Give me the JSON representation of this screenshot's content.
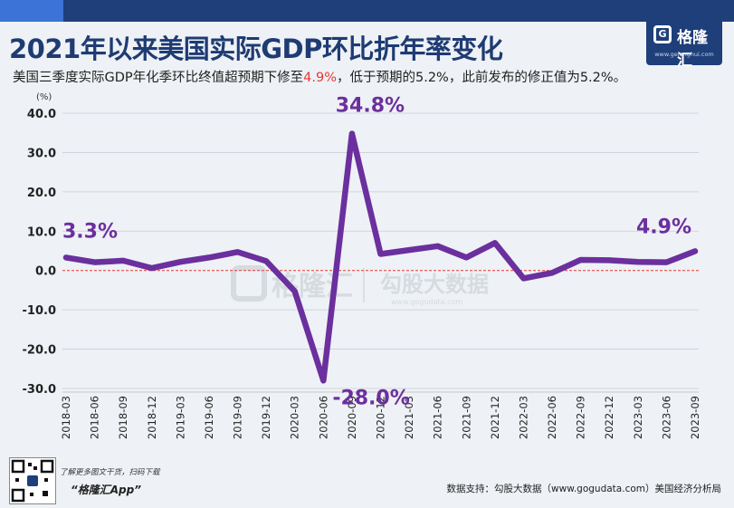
{
  "header": {
    "title": "2021年以来美国实际GDP环比折年率变化",
    "subtitle_prefix": "美国三季度实际GDP年化季环比终值超预期下修至",
    "subtitle_highlight": "4.9%",
    "subtitle_suffix": "，低于预期的5.2%，此前发布的修正值为5.2%。"
  },
  "brand": {
    "logo_mark": "G",
    "logo_name": "格隆汇",
    "logo_url": "www.gelonghui.com",
    "watermark_left": "格隆汇",
    "watermark_right": "勾股大数据",
    "watermark_url": "www.gogudata.com"
  },
  "footer": {
    "note": "了解更多图文干货，扫码下载",
    "app_name": "“格隆汇App”",
    "source": "数据支持：勾股大数据（www.gogudata.com）美国经济分析局"
  },
  "colors": {
    "line": "#6b2f9e",
    "zero_line": "#e53935",
    "highlight": "#e53935",
    "title": "#1e3b73"
  },
  "chart_data": {
    "type": "line",
    "ylabel": "(%)",
    "ylim": [
      -30,
      40
    ],
    "yticks": [
      "40.0",
      "30.0",
      "20.0",
      "10.0",
      "0.0",
      "-10.0",
      "-20.0",
      "-30.0"
    ],
    "ytick_values": [
      40,
      30,
      20,
      10,
      0,
      -10,
      -20,
      -30
    ],
    "grid": true,
    "categories": [
      "2018-03",
      "2018-06",
      "2018-09",
      "2018-12",
      "2019-03",
      "2019-06",
      "2019-09",
      "2019-12",
      "2020-03",
      "2020-06",
      "2020-09",
      "2020-12",
      "2021-03",
      "2021-06",
      "2021-09",
      "2021-12",
      "2022-03",
      "2022-06",
      "2022-09",
      "2022-12",
      "2023-03",
      "2023-06",
      "2023-09"
    ],
    "series": [
      {
        "name": "实际GDP环比折年率",
        "values": [
          3.3,
          2.1,
          2.5,
          0.6,
          2.2,
          3.3,
          4.7,
          2.4,
          -5.3,
          -28.0,
          34.8,
          4.2,
          5.2,
          6.2,
          3.3,
          7.0,
          -2.0,
          -0.6,
          2.7,
          2.6,
          2.2,
          2.1,
          4.9
        ]
      }
    ],
    "annotations": [
      {
        "text": "3.3%",
        "index": 0
      },
      {
        "text": "34.8%",
        "index": 10
      },
      {
        "text": "-28.0%",
        "index": 9
      },
      {
        "text": "4.9%",
        "index": 22
      }
    ]
  }
}
